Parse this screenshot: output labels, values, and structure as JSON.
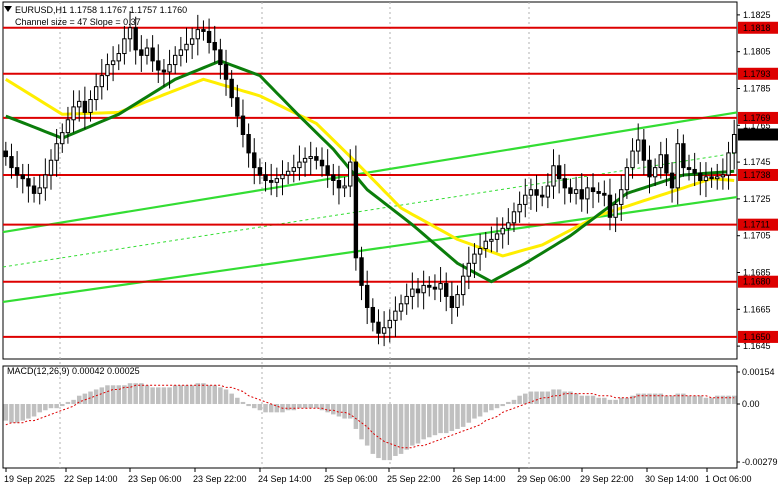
{
  "header": {
    "symbol_line": "EURUSD,H1  1.1758 1.1767 1.1757 1.1760",
    "channel_line": "Channel size = 47 Slope = 0.37"
  },
  "macd": {
    "label": "MACD(12,26,9) 0.00042 0.00025",
    "axis_ticks": [
      {
        "value": 0.00154,
        "label": "0.00154"
      },
      {
        "value": 0.0,
        "label": "0.00"
      },
      {
        "value": -0.00279,
        "label": "-0.00279"
      }
    ]
  },
  "colors": {
    "background": "#ffffff",
    "candle": "#000000",
    "ma_fast": "#ffee00",
    "ma_slow": "#0b7d0b",
    "channel": "#33dd33",
    "level_line": "#dd0000",
    "level_tag_bg": "#dd0000",
    "current_tag_bg": "#000000",
    "macd_hist": "#c0c0c0",
    "macd_signal": "#dd0000"
  },
  "chart_data": {
    "type": "candlestick",
    "instrument": "EURUSD",
    "timeframe": "H1",
    "ylim": [
      1.1638,
      1.1832
    ],
    "current_price": "1.1760",
    "price_axis_ticks": [
      "1.1825",
      "1.1805",
      "1.1785",
      "1.1765",
      "1.1745",
      "1.1725",
      "1.1705",
      "1.1685",
      "1.1665",
      "1.1645"
    ],
    "levels": [
      "1.1818",
      "1.1793",
      "1.1769",
      "1.1738",
      "1.1711",
      "1.1680",
      "1.1650"
    ],
    "x_labels": [
      "19 Sep 2025",
      "22 Sep 14:00",
      "23 Sep 06:00",
      "23 Sep 22:00",
      "24 Sep 14:00",
      "25 Sep 06:00",
      "25 Sep 22:00",
      "26 Sep 14:00",
      "29 Sep 06:00",
      "29 Sep 22:00",
      "30 Sep 14:00",
      "1 Oct 06:00"
    ],
    "closes": [
      1.1748,
      1.1742,
      1.1738,
      1.1736,
      1.1732,
      1.1728,
      1.1731,
      1.1738,
      1.1746,
      1.1755,
      1.1761,
      1.1768,
      1.1775,
      1.1778,
      1.1772,
      1.1779,
      1.1786,
      1.1792,
      1.1798,
      1.18,
      1.1804,
      1.1812,
      1.1818,
      1.1806,
      1.1803,
      1.1807,
      1.18,
      1.1795,
      1.1794,
      1.1798,
      1.1803,
      1.1806,
      1.1809,
      1.1812,
      1.1817,
      1.1816,
      1.181,
      1.1806,
      1.1798,
      1.179,
      1.178,
      1.177,
      1.176,
      1.175,
      1.1742,
      1.1738,
      1.1735,
      1.1734,
      1.1736,
      1.1738,
      1.174,
      1.1742,
      1.1745,
      1.1747,
      1.1748,
      1.1746,
      1.1743,
      1.1738,
      1.1735,
      1.1731,
      1.1732,
      1.1745,
      1.1693,
      1.1678,
      1.1666,
      1.1658,
      1.1652,
      1.1655,
      1.1659,
      1.1664,
      1.1668,
      1.1672,
      1.1676,
      1.1674,
      1.1678,
      1.1677,
      1.1676,
      1.1679,
      1.1672,
      1.1666,
      1.1673,
      1.1683,
      1.169,
      1.1695,
      1.1698,
      1.1702,
      1.1703,
      1.1706,
      1.1709,
      1.1712,
      1.1718,
      1.1722,
      1.1727,
      1.173,
      1.1727,
      1.1726,
      1.1732,
      1.1743,
      1.1736,
      1.1731,
      1.1728,
      1.173,
      1.1725,
      1.1731,
      1.1729,
      1.1728,
      1.1727,
      1.1715,
      1.1722,
      1.173,
      1.1742,
      1.1751,
      1.1757,
      1.1746,
      1.1737,
      1.1742,
      1.1749,
      1.1739,
      1.1731,
      1.1755,
      1.1742,
      1.1741,
      1.1739,
      1.1735,
      1.1737,
      1.1736,
      1.1737,
      1.1738,
      1.175,
      1.176
    ],
    "ma_fast_key_points": [
      [
        0,
        1.179
      ],
      [
        10,
        1.1771
      ],
      [
        20,
        1.1772
      ],
      [
        35,
        1.179
      ],
      [
        45,
        1.1781
      ],
      [
        55,
        1.1766
      ],
      [
        62,
        1.1745
      ],
      [
        70,
        1.172
      ],
      [
        80,
        1.1703
      ],
      [
        88,
        1.1694
      ],
      [
        95,
        1.17
      ],
      [
        105,
        1.1716
      ],
      [
        115,
        1.1726
      ],
      [
        125,
        1.1736
      ],
      [
        129,
        1.1735
      ]
    ],
    "ma_slow_key_points": [
      [
        0,
        1.177
      ],
      [
        10,
        1.1758
      ],
      [
        20,
        1.1771
      ],
      [
        30,
        1.179
      ],
      [
        38,
        1.18
      ],
      [
        45,
        1.1792
      ],
      [
        52,
        1.177
      ],
      [
        58,
        1.1752
      ],
      [
        64,
        1.173
      ],
      [
        72,
        1.1711
      ],
      [
        80,
        1.169
      ],
      [
        86,
        1.168
      ],
      [
        92,
        1.169
      ],
      [
        100,
        1.1705
      ],
      [
        110,
        1.1728
      ],
      [
        120,
        1.1738
      ],
      [
        129,
        1.174
      ]
    ],
    "channel_lines": [
      [
        [
          0,
          1.1707
        ],
        [
          129,
          1.1772
        ]
      ],
      [
        [
          0,
          1.1669
        ],
        [
          129,
          1.1726
        ]
      ],
      [
        [
          0,
          1.1688
        ],
        [
          129,
          1.175
        ]
      ]
    ],
    "macd_hist": [
      -0.0008,
      -0.0009,
      -0.0009,
      -0.0008,
      -0.0007,
      -0.0006,
      -0.0004,
      -0.0003,
      -0.0002,
      -0.0002,
      -0.0001,
      0.0001,
      0.0002,
      0.0004,
      0.0005,
      0.0006,
      0.0007,
      0.0008,
      0.0009,
      0.0009,
      0.0009,
      0.0009,
      0.001,
      0.001,
      0.001,
      0.0009,
      0.0008,
      0.0008,
      0.0008,
      0.0008,
      0.0009,
      0.0009,
      0.0009,
      0.0009,
      0.001,
      0.001,
      0.0009,
      0.0009,
      0.0008,
      0.0007,
      0.0005,
      0.0003,
      0.0001,
      -0.0001,
      -0.0002,
      -0.0003,
      -0.0004,
      -0.0004,
      -0.0004,
      -0.0004,
      -0.0003,
      -0.0003,
      -0.0002,
      -0.0002,
      -0.0002,
      -0.0002,
      -0.0003,
      -0.0004,
      -0.0005,
      -0.0006,
      -0.0007,
      -0.0007,
      -0.0012,
      -0.0017,
      -0.002,
      -0.0024,
      -0.0026,
      -0.0027,
      -0.0027,
      -0.0025,
      -0.0024,
      -0.0022,
      -0.002,
      -0.0019,
      -0.0017,
      -0.0016,
      -0.0015,
      -0.0014,
      -0.0014,
      -0.0013,
      -0.0012,
      -0.0011,
      -0.0009,
      -0.0007,
      -0.0006,
      -0.0004,
      -0.0003,
      -0.0002,
      -0.0001,
      0.0001,
      0.0002,
      0.0004,
      0.0005,
      0.0006,
      0.0006,
      0.0006,
      0.0006,
      0.0007,
      0.0007,
      0.0006,
      0.0006,
      0.0005,
      0.0004,
      0.0004,
      0.0004,
      0.0003,
      0.0003,
      0.0002,
      0.0002,
      0.0003,
      0.0003,
      0.0004,
      0.0005,
      0.0005,
      0.0005,
      0.0005,
      0.0005,
      0.0004,
      0.0004,
      0.0005,
      0.0005,
      0.0004,
      0.0004,
      0.0004,
      0.0003,
      0.0003,
      0.0004,
      0.0004,
      0.0004,
      0.0004
    ],
    "macd_signal": [
      -0.001,
      -0.0009,
      -0.0009,
      -0.0009,
      -0.0008,
      -0.0008,
      -0.0007,
      -0.0006,
      -0.0005,
      -0.0004,
      -0.0003,
      -0.0002,
      -0.0001,
      0.0001,
      0.0002,
      0.0003,
      0.0004,
      0.0005,
      0.0006,
      0.0007,
      0.0007,
      0.0008,
      0.0008,
      0.0009,
      0.0009,
      0.0009,
      0.0009,
      0.0009,
      0.0009,
      0.0009,
      0.0009,
      0.0009,
      0.0009,
      0.0009,
      0.0009,
      0.0009,
      0.0009,
      0.0009,
      0.0009,
      0.0008,
      0.0008,
      0.0007,
      0.0006,
      0.0004,
      0.0003,
      0.0002,
      0.0001,
      0.0,
      -0.0001,
      -0.0002,
      -0.0002,
      -0.0002,
      -0.0002,
      -0.0002,
      -0.0002,
      -0.0002,
      -0.0002,
      -0.0003,
      -0.0003,
      -0.0004,
      -0.0004,
      -0.0005,
      -0.0007,
      -0.0009,
      -0.0011,
      -0.0014,
      -0.0016,
      -0.0018,
      -0.0019,
      -0.002,
      -0.0021,
      -0.0021,
      -0.0021,
      -0.002,
      -0.002,
      -0.0019,
      -0.0018,
      -0.0017,
      -0.0016,
      -0.0015,
      -0.0014,
      -0.0013,
      -0.0012,
      -0.0011,
      -0.001,
      -0.0008,
      -0.0007,
      -0.0006,
      -0.0004,
      -0.0003,
      -0.0002,
      -0.0001,
      0.0,
      0.0001,
      0.0002,
      0.0003,
      0.0003,
      0.0004,
      0.0004,
      0.0005,
      0.0005,
      0.0005,
      0.0005,
      0.0005,
      0.0005,
      0.0004,
      0.0004,
      0.0004,
      0.0003,
      0.0003,
      0.0003,
      0.0003,
      0.0004,
      0.0004,
      0.0004,
      0.0004,
      0.0004,
      0.0004,
      0.0004,
      0.0004,
      0.0004,
      0.0004,
      0.0004,
      0.0004,
      0.0004,
      0.0003,
      0.0003,
      0.0003,
      0.0003,
      0.0003
    ]
  }
}
